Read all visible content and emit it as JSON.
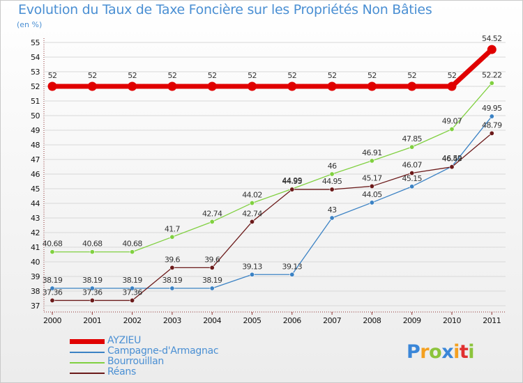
{
  "chart_data": {
    "type": "line",
    "title": "Evolution du Taux de Taxe Foncière sur les Propriétés Non Bâties",
    "ylabel": "(en %)",
    "xlabel": "",
    "x": [
      "2000",
      "2001",
      "2002",
      "2003",
      "2004",
      "2005",
      "2006",
      "2007",
      "2008",
      "2009",
      "2010",
      "2011"
    ],
    "ylim": [
      37,
      55
    ],
    "yticks": [
      "37",
      "38",
      "39",
      "40",
      "41",
      "42",
      "43",
      "44",
      "45",
      "46",
      "47",
      "48",
      "49",
      "50",
      "51",
      "52",
      "53",
      "54",
      "55"
    ],
    "series": [
      {
        "name": "AYZIEU",
        "color": "#e00000",
        "values": [
          52,
          52,
          52,
          52,
          52,
          52,
          52,
          52,
          52,
          52,
          52,
          54.52
        ],
        "labels": [
          "52",
          "52",
          "52",
          "52",
          "52",
          "52",
          "52",
          "52",
          "52",
          "52",
          "52",
          "54.52"
        ]
      },
      {
        "name": "Campagne-d'Armagnac",
        "color": "#3b82c4",
        "values": [
          38.19,
          38.19,
          38.19,
          38.19,
          38.19,
          39.13,
          39.13,
          43,
          44.05,
          45.15,
          46.52,
          49.95
        ],
        "labels": [
          "38.19",
          "38.19",
          "38.19",
          "38.19",
          "38.19",
          "39.13",
          "39.13",
          "43",
          "44.05",
          "45.15",
          "46.52",
          "49.95"
        ]
      },
      {
        "name": "Bourrouillan",
        "color": "#80d040",
        "values": [
          40.68,
          40.68,
          40.68,
          41.7,
          42.74,
          44.02,
          44.99,
          46,
          46.91,
          47.85,
          49.07,
          52.22
        ],
        "labels": [
          "40.68",
          "40.68",
          "40.68",
          "41.7",
          "42.74",
          "44.02",
          "44.99",
          "46",
          "46.91",
          "47.85",
          "49.07",
          "52.22"
        ]
      },
      {
        "name": "Réans",
        "color": "#6b1a1a",
        "values": [
          37.36,
          37.36,
          37.36,
          39.6,
          39.6,
          42.74,
          44.95,
          44.95,
          45.17,
          46.07,
          46.49,
          48.79
        ],
        "labels": [
          "37.36",
          "37.36",
          "37.36",
          "39.6",
          "39.6",
          "42.74",
          "44.95",
          "44.95",
          "45.17",
          "46.07",
          "46.49",
          "48.79"
        ]
      }
    ]
  },
  "logo": {
    "letters": [
      {
        "ch": "P",
        "color": "#3a86d8"
      },
      {
        "ch": "r",
        "color": "#f4a020"
      },
      {
        "ch": "o",
        "color": "#8cc43c"
      },
      {
        "ch": "x",
        "color": "#3a86d8"
      },
      {
        "ch": "i",
        "color": "#f4a020"
      },
      {
        "ch": "t",
        "color": "#e03030"
      },
      {
        "ch": "i",
        "color": "#8cc43c"
      }
    ]
  }
}
